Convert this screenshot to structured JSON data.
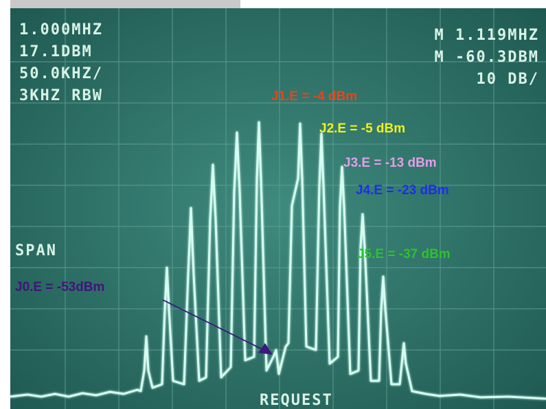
{
  "screen": {
    "settings_left": [
      "1.000MHZ",
      "17.1DBM",
      "50.0KHZ/",
      "3KHZ RBW"
    ],
    "settings_right": [
      "M 1.119MHZ",
      "M -60.3DBM",
      "10 DB/"
    ],
    "span_label": "SPAN",
    "bottom_label": "REQUEST"
  },
  "annotations": [
    {
      "text": "J1.E = -4 dBm"
    },
    {
      "text": "J2.E = -5 dBm"
    },
    {
      "text": "J3.E = -13 dBm"
    },
    {
      "text": "J4.E = -23 dBm"
    },
    {
      "text": "J5.E = -37 dBm"
    },
    {
      "text": "J0.E = -53dBm"
    }
  ]
}
